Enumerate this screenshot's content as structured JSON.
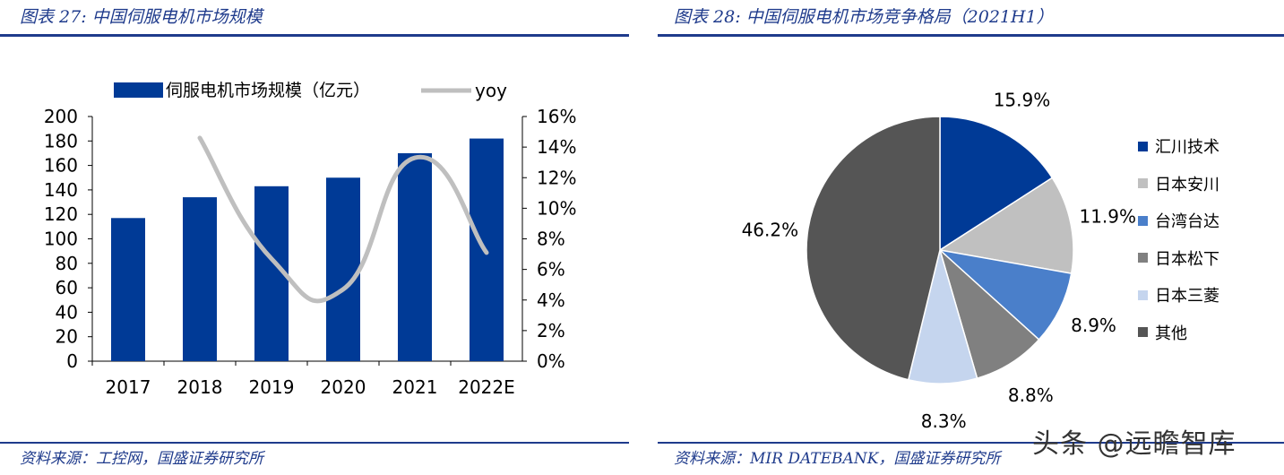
{
  "left_figure": {
    "title": "图表 27:  中国伺服电机市场规模",
    "source": "资料来源：工控网，国盛证券研究所"
  },
  "right_figure": {
    "title": "图表 28:  中国伺服电机市场竞争格局（2021H1）",
    "source": "资料来源：MIR DATEBANK，国盛证券研究所"
  },
  "watermark": "头条 @远瞻智库",
  "chart_data": [
    {
      "type": "bar",
      "categories": [
        "2017",
        "2018",
        "2019",
        "2020",
        "2021",
        "2022E"
      ],
      "series": [
        {
          "name": "伺服电机市场规模（亿元）",
          "type": "bar",
          "axis": "left",
          "values": [
            117,
            134,
            143,
            150,
            170,
            182
          ],
          "color": "#003a96"
        },
        {
          "name": "yoy",
          "type": "line",
          "axis": "right",
          "values": [
            null,
            14.6,
            6.7,
            4.7,
            13.3,
            7.1
          ],
          "color": "#bfbfbf"
        }
      ],
      "left_axis": {
        "ylim": [
          0,
          200
        ],
        "ticks": [
          "200",
          "180",
          "160",
          "140",
          "120",
          "100",
          "80",
          "60",
          "40",
          "20",
          "0"
        ]
      },
      "right_axis": {
        "ylim": [
          0,
          16
        ],
        "ticks": [
          "16%",
          "14%",
          "12%",
          "10%",
          "8%",
          "6%",
          "4%",
          "2%",
          "0%"
        ]
      },
      "legend": "top"
    },
    {
      "type": "pie",
      "slices": [
        {
          "label": "汇川技术",
          "value": 15.9,
          "display": "15.9%",
          "color": "#003a96"
        },
        {
          "label": "日本安川",
          "value": 11.9,
          "display": "11.9%",
          "color": "#c0c0c0"
        },
        {
          "label": "台湾台达",
          "value": 8.9,
          "display": "8.9%",
          "color": "#4a7fca"
        },
        {
          "label": "日本松下",
          "value": 8.8,
          "display": "8.8%",
          "color": "#808080"
        },
        {
          "label": "日本三菱",
          "value": 8.3,
          "display": "8.3%",
          "color": "#c5d5ee"
        },
        {
          "label": "其他",
          "value": 46.2,
          "display": "46.2%",
          "color": "#555555"
        }
      ],
      "legend": "right"
    }
  ]
}
